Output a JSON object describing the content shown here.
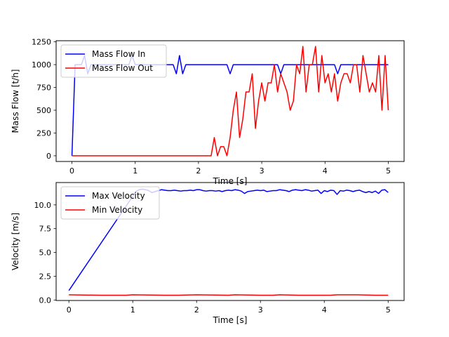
{
  "chart_data": [
    {
      "type": "line",
      "xlabel": "Time [s]",
      "ylabel": "Mass Flow [t/h]",
      "xlim": [
        -0.25,
        5.25
      ],
      "ylim": [
        -62.5,
        1262.5
      ],
      "xticks": [
        0,
        1,
        2,
        3,
        4,
        5
      ],
      "yticks": [
        0,
        250,
        500,
        750,
        1000,
        1250
      ],
      "grid": false,
      "legend_position": "upper-left",
      "series": [
        {
          "name": "Mass Flow In",
          "color": "#0000ff",
          "x": [
            0,
            0.05,
            0.1,
            0.15,
            0.2,
            0.25,
            0.3,
            0.35,
            0.4,
            0.45,
            0.5,
            0.55,
            0.6,
            0.65,
            0.7,
            0.75,
            0.8,
            0.85,
            0.9,
            0.95,
            1.0,
            1.05,
            1.1,
            1.15,
            1.2,
            1.25,
            1.3,
            1.35,
            1.4,
            1.45,
            1.5,
            1.55,
            1.6,
            1.65,
            1.7,
            1.75,
            1.8,
            1.85,
            1.9,
            1.95,
            2.0,
            2.05,
            2.1,
            2.15,
            2.2,
            2.25,
            2.3,
            2.35,
            2.4,
            2.45,
            2.5,
            2.55,
            2.6,
            2.65,
            2.7,
            2.75,
            2.8,
            2.85,
            2.9,
            2.95,
            3.0,
            3.05,
            3.1,
            3.15,
            3.2,
            3.25,
            3.3,
            3.35,
            3.4,
            3.45,
            3.5,
            3.55,
            3.6,
            3.65,
            3.7,
            3.75,
            3.8,
            3.85,
            3.9,
            3.95,
            4.0,
            4.05,
            4.1,
            4.15,
            4.2,
            4.25,
            4.3,
            4.35,
            4.4,
            4.45,
            4.5,
            4.55,
            4.6,
            4.65,
            4.7,
            4.75,
            4.8,
            4.85,
            4.9,
            4.95,
            5.0
          ],
          "y": [
            0,
            1000,
            1000,
            1000,
            1100,
            900,
            1000,
            1000,
            1000,
            1000,
            1000,
            1000,
            1000,
            1000,
            1000,
            1000,
            1000,
            1000,
            1000,
            1100,
            1000,
            1000,
            1000,
            1000,
            1000,
            1000,
            1000,
            1000,
            1000,
            1000,
            1000,
            1000,
            1000,
            900,
            1100,
            900,
            1000,
            1000,
            1000,
            1000,
            1000,
            1000,
            1000,
            1000,
            1000,
            1000,
            1000,
            1000,
            1000,
            1000,
            900,
            1000,
            1000,
            1000,
            1000,
            1000,
            1000,
            1000,
            1000,
            1000,
            1000,
            1000,
            1000,
            1000,
            1000,
            1000,
            900,
            1000,
            1000,
            1000,
            1000,
            1000,
            1000,
            1000,
            1000,
            1000,
            1000,
            1000,
            1000,
            1000,
            1000,
            1000,
            1000,
            1000,
            900,
            1000,
            1000,
            1000,
            1000,
            1000,
            1000,
            1000,
            1000,
            1000,
            1000,
            1000,
            1000,
            1000,
            1000,
            1000,
            1000
          ]
        },
        {
          "name": "Mass Flow Out",
          "color": "#ff0000",
          "x": [
            0,
            0.05,
            0.1,
            0.15,
            0.2,
            0.25,
            0.3,
            0.35,
            0.4,
            0.45,
            0.5,
            0.55,
            0.6,
            0.65,
            0.7,
            0.75,
            0.8,
            0.85,
            0.9,
            0.95,
            1.0,
            1.05,
            1.1,
            1.15,
            1.2,
            1.25,
            1.3,
            1.35,
            1.4,
            1.45,
            1.5,
            1.55,
            1.6,
            1.65,
            1.7,
            1.75,
            1.8,
            1.85,
            1.9,
            1.95,
            2.0,
            2.05,
            2.1,
            2.15,
            2.2,
            2.25,
            2.3,
            2.35,
            2.4,
            2.45,
            2.5,
            2.55,
            2.6,
            2.65,
            2.7,
            2.75,
            2.8,
            2.85,
            2.9,
            2.95,
            3.0,
            3.05,
            3.1,
            3.15,
            3.2,
            3.25,
            3.3,
            3.35,
            3.4,
            3.45,
            3.5,
            3.55,
            3.6,
            3.65,
            3.7,
            3.75,
            3.8,
            3.85,
            3.9,
            3.95,
            4.0,
            4.05,
            4.1,
            4.15,
            4.2,
            4.25,
            4.3,
            4.35,
            4.4,
            4.45,
            4.5,
            4.55,
            4.6,
            4.65,
            4.7,
            4.75,
            4.8,
            4.85,
            4.9,
            4.95,
            5.0
          ],
          "y": [
            0,
            0,
            0,
            0,
            0,
            0,
            0,
            0,
            0,
            0,
            0,
            0,
            0,
            0,
            0,
            0,
            0,
            0,
            0,
            0,
            0,
            0,
            0,
            0,
            0,
            0,
            0,
            0,
            0,
            0,
            0,
            0,
            0,
            0,
            0,
            0,
            0,
            0,
            0,
            0,
            0,
            0,
            0,
            0,
            0,
            200,
            0,
            100,
            100,
            0,
            200,
            500,
            700,
            200,
            400,
            700,
            700,
            900,
            300,
            600,
            800,
            600,
            800,
            800,
            1000,
            700,
            900,
            800,
            700,
            500,
            600,
            1000,
            900,
            1200,
            700,
            1000,
            1000,
            1200,
            700,
            1100,
            800,
            900,
            700,
            900,
            600,
            800,
            900,
            900,
            800,
            1000,
            1000,
            700,
            1100,
            900,
            700,
            800,
            700,
            1100,
            500,
            1100,
            500
          ]
        }
      ]
    },
    {
      "type": "line",
      "xlabel": "Time [s]",
      "ylabel": "Velocity [m/s]",
      "xlim": [
        -0.2,
        5.25
      ],
      "ylim": [
        -0.05,
        12.35
      ],
      "xticks": [
        0,
        1,
        2,
        3,
        4,
        5
      ],
      "yticks": [
        0.0,
        2.5,
        5.0,
        7.5,
        10.0
      ],
      "ytick_labels": [
        "0.0",
        "2.5",
        "5.0",
        "7.5",
        "10.0"
      ],
      "grid": false,
      "legend_position": "upper-left",
      "series": [
        {
          "name": "Max Velocity",
          "color": "#0000ff",
          "x": [
            0.0,
            1.05,
            1.1,
            1.15,
            1.2,
            1.25,
            1.3,
            1.35,
            1.4,
            1.45,
            1.5,
            1.55,
            1.6,
            1.65,
            1.7,
            1.75,
            1.8,
            1.85,
            1.9,
            1.95,
            2.0,
            2.05,
            2.1,
            2.15,
            2.2,
            2.25,
            2.3,
            2.35,
            2.4,
            2.45,
            2.5,
            2.55,
            2.6,
            2.65,
            2.7,
            2.75,
            2.8,
            2.85,
            2.9,
            2.95,
            3.0,
            3.05,
            3.1,
            3.15,
            3.2,
            3.25,
            3.3,
            3.35,
            3.4,
            3.45,
            3.5,
            3.55,
            3.6,
            3.65,
            3.7,
            3.75,
            3.8,
            3.85,
            3.9,
            3.95,
            4.0,
            4.05,
            4.1,
            4.15,
            4.2,
            4.25,
            4.3,
            4.35,
            4.4,
            4.45,
            4.5,
            4.55,
            4.6,
            4.65,
            4.7,
            4.75,
            4.8,
            4.85,
            4.9,
            4.95,
            5.0
          ],
          "y": [
            1.0,
            11.4,
            11.6,
            11.65,
            11.6,
            11.5,
            11.3,
            11.4,
            11.5,
            11.6,
            11.55,
            11.5,
            11.5,
            11.55,
            11.5,
            11.45,
            11.5,
            11.5,
            11.55,
            11.5,
            11.6,
            11.6,
            11.5,
            11.45,
            11.5,
            11.5,
            11.45,
            11.5,
            11.4,
            11.5,
            11.55,
            11.5,
            11.6,
            11.55,
            11.45,
            11.2,
            11.4,
            11.45,
            11.5,
            11.55,
            11.5,
            11.55,
            11.4,
            11.45,
            11.5,
            11.5,
            11.6,
            11.55,
            11.5,
            11.4,
            11.55,
            11.6,
            11.55,
            11.5,
            11.6,
            11.55,
            11.45,
            11.5,
            11.55,
            11.2,
            11.5,
            11.4,
            11.55,
            11.5,
            11.1,
            11.5,
            11.45,
            11.55,
            11.5,
            11.4,
            11.5,
            11.55,
            11.4,
            11.3,
            11.4,
            11.3,
            11.45,
            11.2,
            11.55,
            11.6,
            11.3
          ]
        },
        {
          "name": "Min Velocity",
          "color": "#ff0000",
          "x": [
            0.0,
            0.5,
            0.9,
            1.0,
            1.5,
            1.7,
            2.0,
            2.5,
            2.6,
            3.0,
            3.2,
            3.3,
            3.6,
            4.0,
            4.1,
            4.2,
            4.5,
            4.8,
            5.0
          ],
          "y": [
            0.55,
            0.5,
            0.5,
            0.55,
            0.5,
            0.5,
            0.55,
            0.5,
            0.55,
            0.5,
            0.5,
            0.55,
            0.5,
            0.5,
            0.5,
            0.55,
            0.55,
            0.5,
            0.5
          ]
        }
      ]
    }
  ]
}
